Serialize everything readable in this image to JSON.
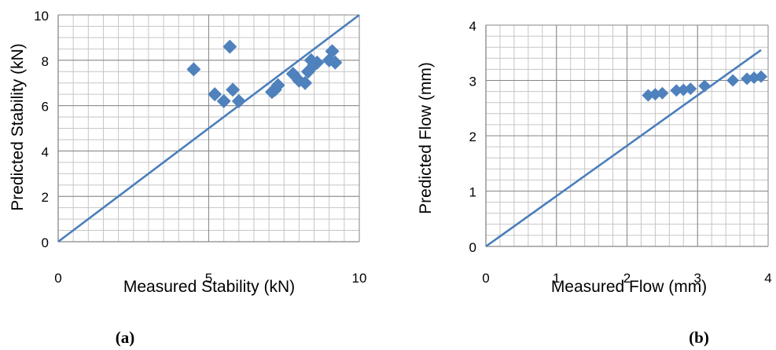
{
  "panels": {
    "a": {
      "label": "(a)"
    },
    "b": {
      "label": "(b)"
    }
  },
  "chart_data": [
    {
      "type": "scatter",
      "title": "",
      "xlabel": "Measured Stability (kN)",
      "ylabel": "Predicted Stability (kN)",
      "xlim": [
        0,
        10
      ],
      "ylim": [
        0,
        10
      ],
      "xticks": [
        "0",
        "5",
        "10"
      ],
      "yticks": [
        "0",
        "2",
        "4",
        "6",
        "8",
        "10"
      ],
      "grid": true,
      "marker_color": "#4f81bd",
      "line_color": "#4a7ebb",
      "reference_line": {
        "from": [
          0,
          0
        ],
        "to": [
          10,
          10
        ]
      },
      "points": [
        [
          4.5,
          7.6
        ],
        [
          5.2,
          6.5
        ],
        [
          5.5,
          6.2
        ],
        [
          5.7,
          8.6
        ],
        [
          5.8,
          6.7
        ],
        [
          6.0,
          6.2
        ],
        [
          7.1,
          6.6
        ],
        [
          7.2,
          6.7
        ],
        [
          7.3,
          6.9
        ],
        [
          7.8,
          7.4
        ],
        [
          8.0,
          7.1
        ],
        [
          8.2,
          7.0
        ],
        [
          8.3,
          7.5
        ],
        [
          8.4,
          8.0
        ],
        [
          8.5,
          7.8
        ],
        [
          8.6,
          7.9
        ],
        [
          9.0,
          8.0
        ],
        [
          9.1,
          8.4
        ],
        [
          9.2,
          7.9
        ]
      ]
    },
    {
      "type": "scatter",
      "title": "",
      "xlabel": "Measured Flow (mm)",
      "ylabel": "Predicted Flow (mm)",
      "xlim": [
        0,
        4
      ],
      "ylim": [
        0,
        4
      ],
      "xticks": [
        "0",
        "1",
        "2",
        "3",
        "4"
      ],
      "yticks": [
        "0",
        "1",
        "2",
        "3",
        "4"
      ],
      "grid": true,
      "marker_color": "#4f81bd",
      "line_color": "#4a7ebb",
      "reference_line": {
        "from": [
          0,
          0
        ],
        "to": [
          3.9,
          3.55
        ]
      },
      "points": [
        [
          2.3,
          2.73
        ],
        [
          2.4,
          2.75
        ],
        [
          2.5,
          2.77
        ],
        [
          2.7,
          2.82
        ],
        [
          2.8,
          2.83
        ],
        [
          2.9,
          2.85
        ],
        [
          3.1,
          2.9
        ],
        [
          3.5,
          3.0
        ],
        [
          3.7,
          3.03
        ],
        [
          3.8,
          3.05
        ],
        [
          3.9,
          3.07
        ]
      ]
    }
  ]
}
